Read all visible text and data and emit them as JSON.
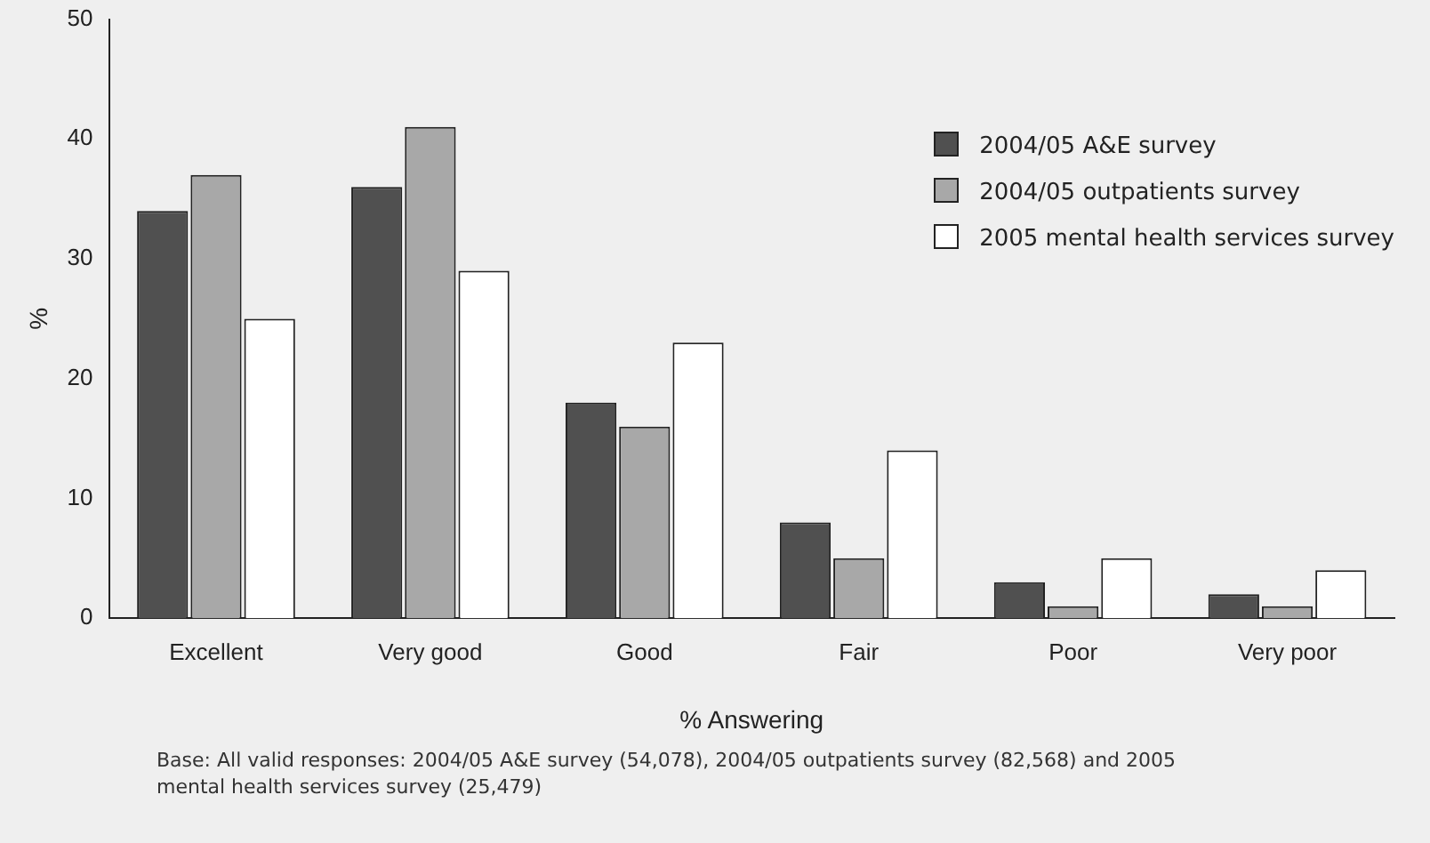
{
  "chart_data": {
    "type": "bar",
    "xlabel": "% Answering",
    "ylabel": "%",
    "categories": [
      "Excellent",
      "Very good",
      "Good",
      "Fair",
      "Poor",
      "Very poor"
    ],
    "series": [
      {
        "name": "2004/05 A&E survey",
        "color": "#505050",
        "values": [
          34,
          36,
          18,
          8,
          3,
          2
        ]
      },
      {
        "name": "2004/05 outpatients survey",
        "color": "#a8a8a8",
        "values": [
          37,
          41,
          16,
          5,
          1,
          1
        ]
      },
      {
        "name": "2005 mental health services survey",
        "color": "#ffffff",
        "values": [
          25,
          29,
          23,
          14,
          5,
          4
        ]
      }
    ],
    "ylim": [
      0,
      50
    ],
    "yticks": [
      0,
      10,
      20,
      30,
      40,
      50
    ],
    "grid": false,
    "legend": "top right",
    "annotations": [
      "Base: All valid responses: 2004/05 A&E survey (54,078), 2004/05 outpatients survey (82,568) and 2005 mental health services survey (25,479)"
    ]
  }
}
